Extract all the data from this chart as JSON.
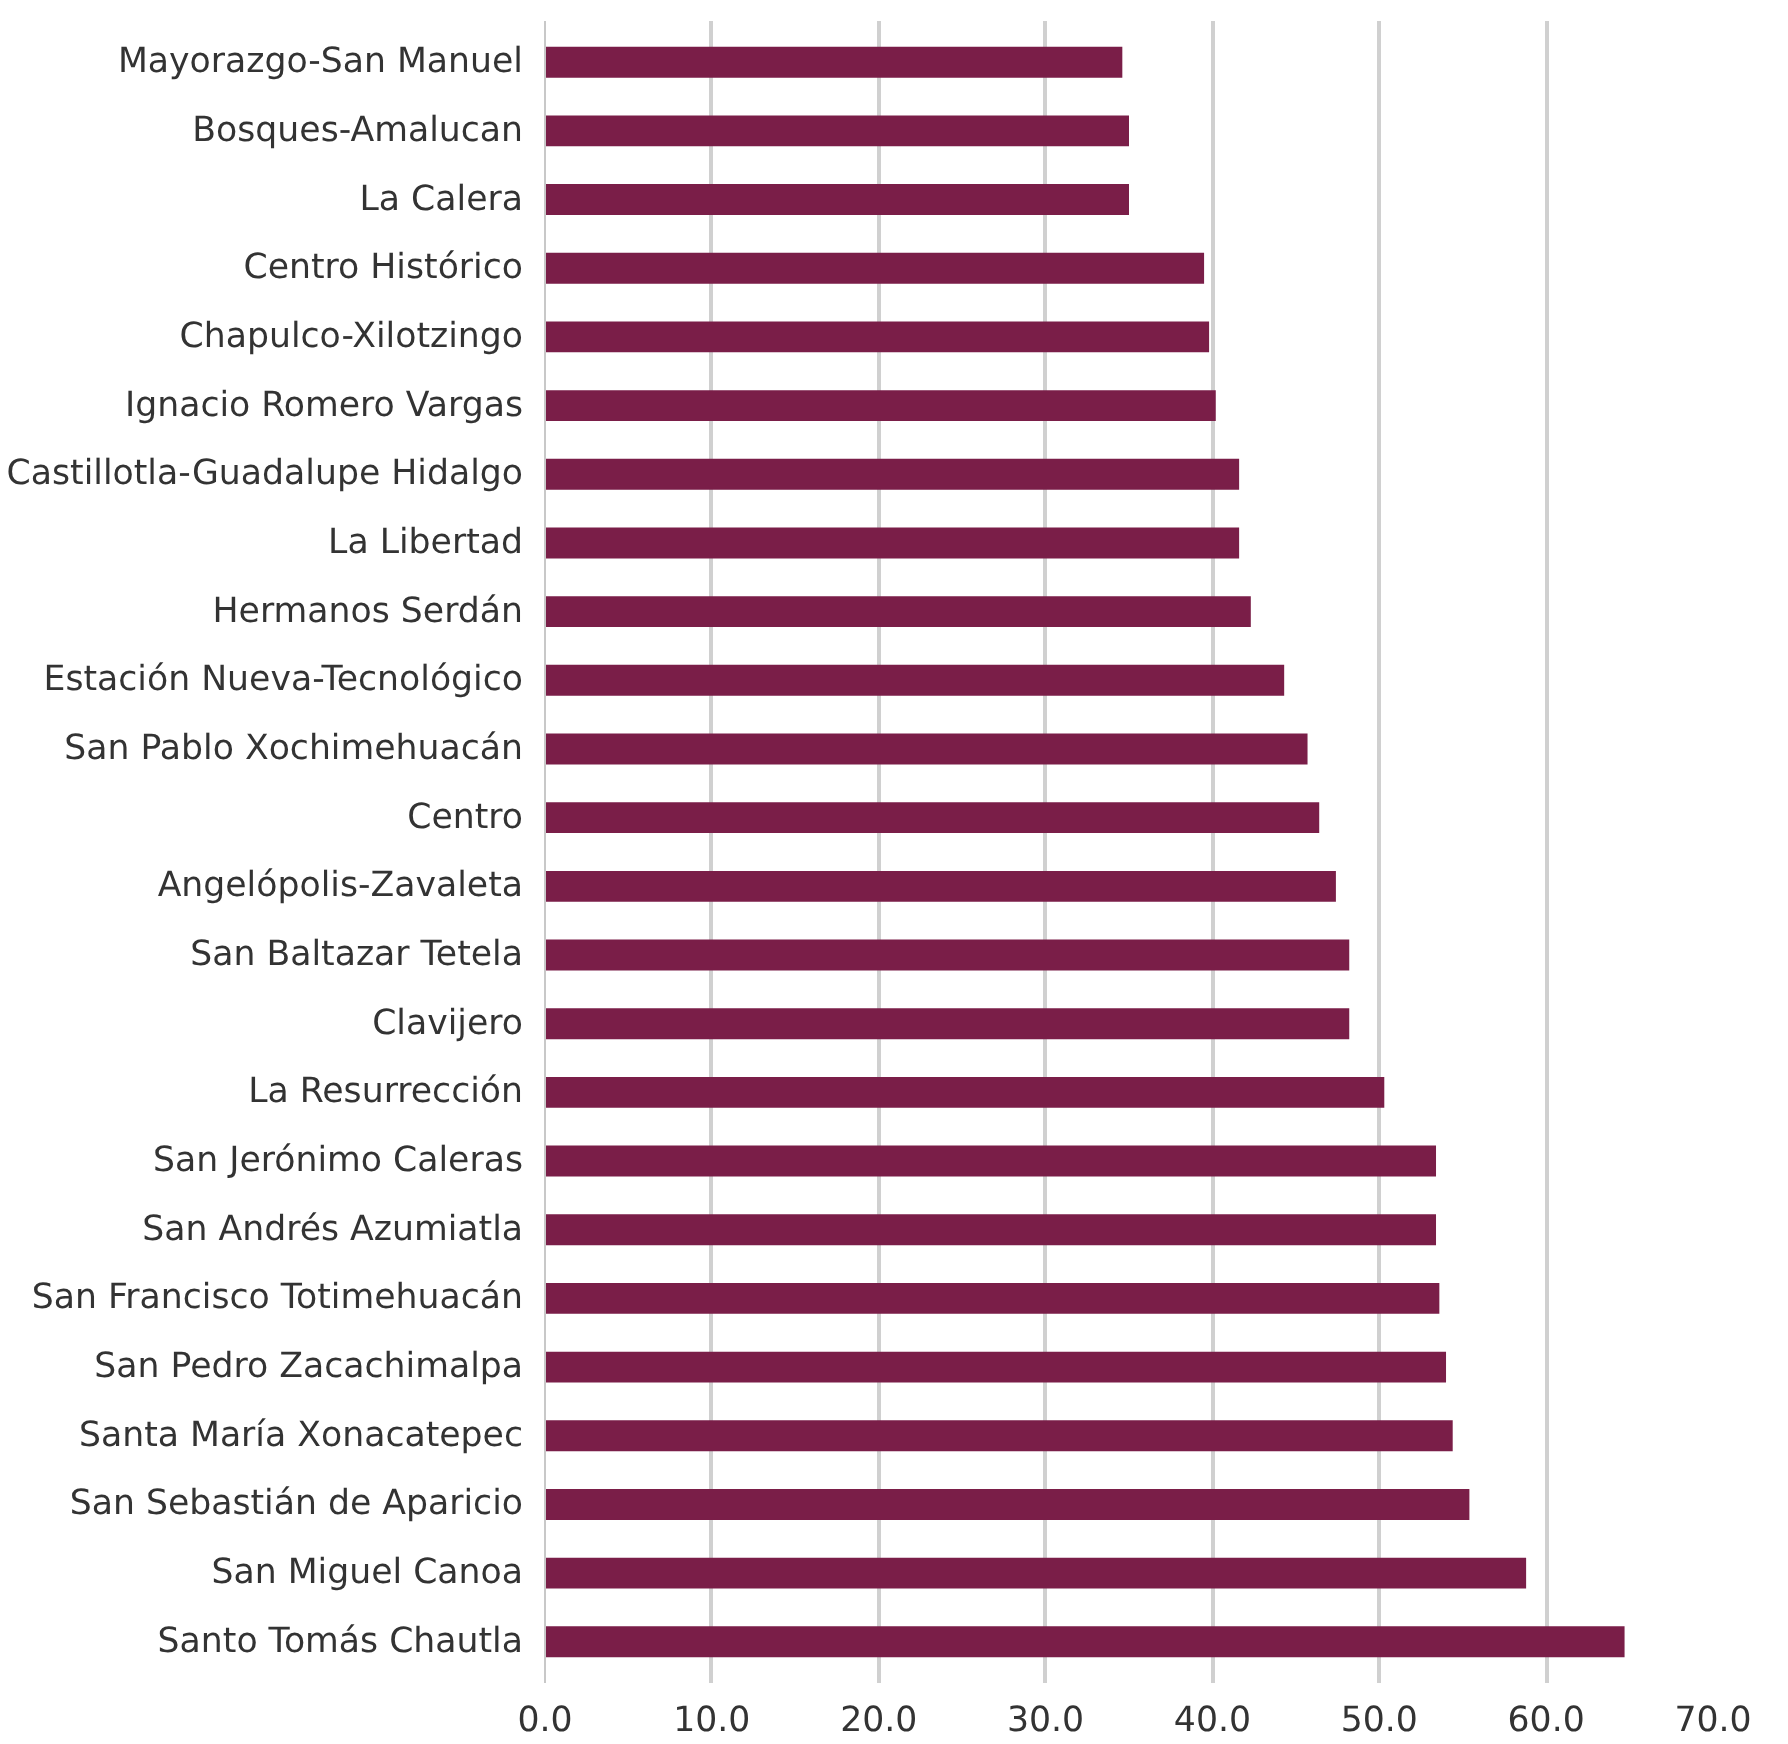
{
  "chart_data": {
    "type": "bar",
    "orientation": "horizontal",
    "categories": [
      "Mayorazgo-San Manuel",
      "Bosques-Amalucan",
      "La Calera",
      "Centro Histórico",
      "Chapulco-Xilotzingo",
      "Ignacio Romero Vargas",
      "Castillotla-Guadalupe Hidalgo",
      "La Libertad",
      "Hermanos Serdán",
      "Estación Nueva-Tecnológico",
      "San Pablo Xochimehuacán",
      "Centro",
      "Angelópolis-Zavaleta",
      "San Baltazar Tetela",
      "Clavijero",
      "La Resurrección",
      "San Jerónimo Caleras",
      "San Andrés Azumiatla",
      "San Francisco Totimehuacán",
      "San Pedro Zacachimalpa",
      "Santa María Xonacatepec",
      "San Sebastián de Aparicio",
      "San Miguel Canoa",
      "Santo Tomás Chautla"
    ],
    "values": [
      34.6,
      35.0,
      35.0,
      39.5,
      39.8,
      40.2,
      41.6,
      41.6,
      42.3,
      44.3,
      45.7,
      46.4,
      47.4,
      48.2,
      48.2,
      50.3,
      53.4,
      53.4,
      53.6,
      54.0,
      54.4,
      55.4,
      58.8,
      64.7
    ],
    "color": "#7a1e48",
    "xlim": [
      0,
      70
    ],
    "xticks": [
      {
        "value": 0,
        "label": "0.0"
      },
      {
        "value": 10,
        "label": "10.0"
      },
      {
        "value": 20,
        "label": "20.0"
      },
      {
        "value": 30,
        "label": "30.0"
      },
      {
        "value": 40,
        "label": "40.0"
      },
      {
        "value": 50,
        "label": "50.0"
      },
      {
        "value": 60,
        "label": "60.0"
      },
      {
        "value": 70,
        "label": "70.0"
      }
    ],
    "grid": "x"
  }
}
